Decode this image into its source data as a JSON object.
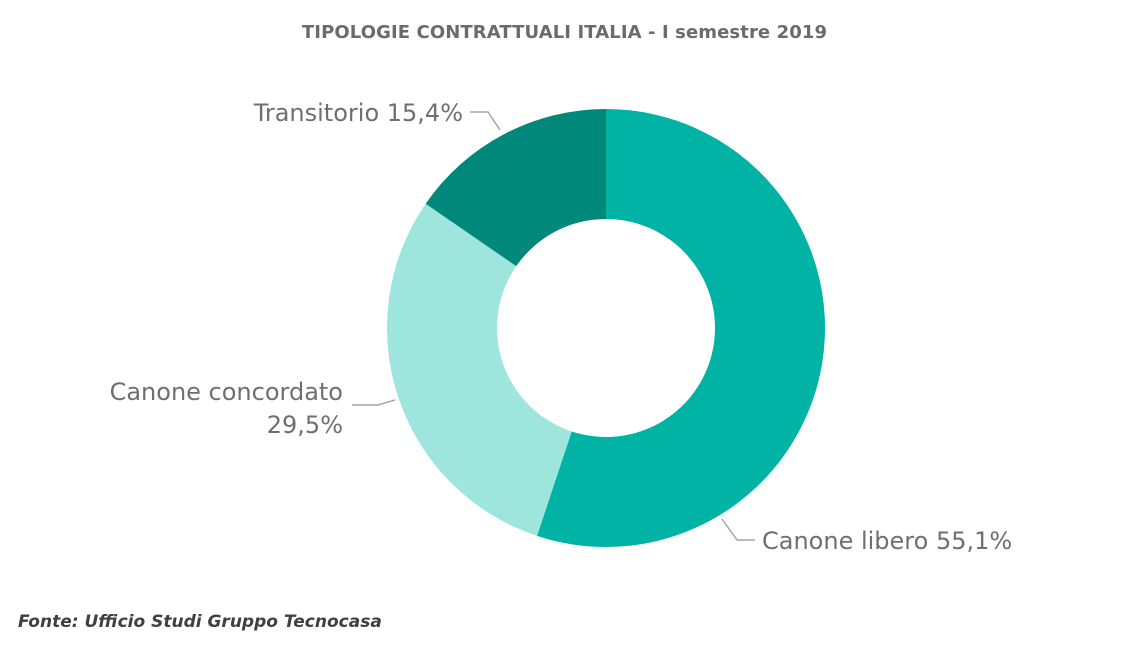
{
  "chart_data": {
    "type": "pie",
    "title": "TIPOLOGIE CONTRATTUALI ITALIA - I semestre 2019",
    "donut": true,
    "slices": [
      {
        "label": "Canone libero 55,1%",
        "category": "Canone libero",
        "value": 55.1,
        "color": "#00b3a4"
      },
      {
        "label_lines": [
          "Canone concordato",
          "29,5%"
        ],
        "category": "Canone concordato",
        "value": 29.5,
        "color": "#9ee5dd"
      },
      {
        "label": "Transitorio 15,4%",
        "category": "Transitorio",
        "value": 15.4,
        "color": "#00897b"
      }
    ],
    "legend": "none"
  },
  "source": "Fonte: Ufficio Studi Gruppo Tecnocasa"
}
